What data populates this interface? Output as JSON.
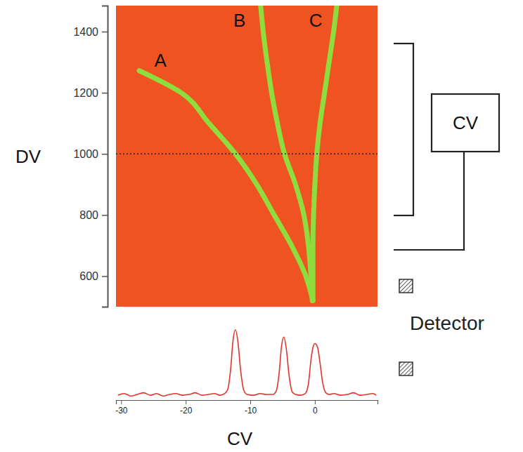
{
  "chart_data": [
    {
      "type": "line",
      "y_label": "DV",
      "xlim": [
        -30.8,
        9.7
      ],
      "ylim": [
        500,
        1485
      ],
      "yticks": [
        600,
        800,
        1000,
        1200,
        1400
      ],
      "tick_labels": "y",
      "hlines": [
        1000
      ],
      "series": [
        {
          "name": "A",
          "color": "#8fdc3e",
          "x": [
            -0.3,
            -1.4,
            -3.6,
            -6.3,
            -9,
            -12.3,
            -16.4,
            -20.7,
            -27.2
          ],
          "values": [
            520,
            600,
            700,
            800,
            900,
            1000,
            1100,
            1200,
            1272
          ]
        },
        {
          "name": "B",
          "color": "#8fdc3e",
          "x": [
            -0.4,
            -0.6,
            -1,
            -1.7,
            -3,
            -4.7,
            -5.8,
            -6.7,
            -7.4,
            -8,
            -8.4
          ],
          "values": [
            520,
            600,
            700,
            800,
            900,
            1000,
            1100,
            1200,
            1300,
            1400,
            1485
          ]
        },
        {
          "name": "C",
          "color": "#8fdc3e",
          "x": [
            -0.3,
            -0.3,
            -0.3,
            -0.2,
            0,
            0.3,
            0.8,
            1.5,
            2.2,
            2.9,
            3.4
          ],
          "values": [
            520,
            600,
            700,
            800,
            900,
            1000,
            1100,
            1200,
            1300,
            1400,
            1485
          ]
        }
      ]
    },
    {
      "type": "line",
      "x_label": "CV",
      "xlim": [
        -30.8,
        9.7
      ],
      "ylim": [
        0,
        1
      ],
      "xticks": [
        -30,
        -20,
        -10,
        0
      ],
      "tick_labels": "x",
      "series": [
        {
          "color": "#e0342c",
          "x": [
            -30.5,
            -29.5,
            -28.5,
            -27.5,
            -26.5,
            -25.5,
            -24.5,
            -23.5,
            -22.5,
            -21.5,
            -20.5,
            -19.5,
            -18.5,
            -17.5,
            -16.5,
            -15.5,
            -14.7,
            -14,
            -13.5,
            -13,
            -12.7,
            -12.3,
            -11.9,
            -11.5,
            -11,
            -10.5,
            -9.5,
            -8.5,
            -7.5,
            -6.5,
            -6,
            -5.5,
            -5.2,
            -4.8,
            -4.4,
            -4,
            -3.5,
            -3,
            -2.2,
            -1.5,
            -1,
            -0.6,
            -0.3,
            0,
            0.4,
            0.8,
            1.2,
            1.7,
            2.2,
            3,
            4,
            5,
            6,
            7,
            8,
            9,
            9.5
          ],
          "values": [
            0.06,
            0.08,
            0.05,
            0.07,
            0.09,
            0.06,
            0.08,
            0.05,
            0.07,
            0.08,
            0.06,
            0.07,
            0.09,
            0.06,
            0.07,
            0.08,
            0.06,
            0.08,
            0.13,
            0.42,
            0.72,
            0.87,
            0.71,
            0.37,
            0.12,
            0.07,
            0.06,
            0.08,
            0.07,
            0.07,
            0.11,
            0.36,
            0.64,
            0.78,
            0.62,
            0.31,
            0.1,
            0.07,
            0.06,
            0.08,
            0.2,
            0.5,
            0.65,
            0.7,
            0.66,
            0.46,
            0.22,
            0.09,
            0.07,
            0.08,
            0.06,
            0.07,
            0.09,
            0.06,
            0.07,
            0.08,
            0.06
          ]
        }
      ]
    }
  ],
  "diagram": {
    "box_label": "CV",
    "detector_label": "Detector"
  }
}
